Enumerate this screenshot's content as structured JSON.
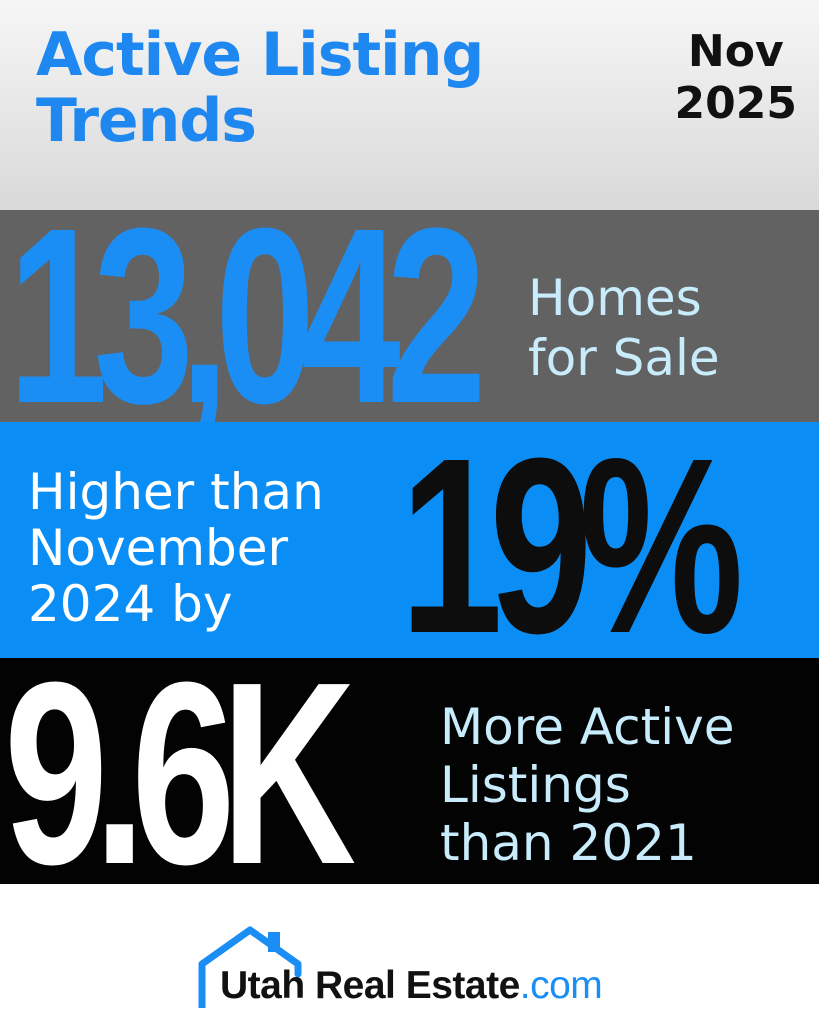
{
  "header": {
    "title_line1": "Active Listing",
    "title_line2": "Trends",
    "month": "Nov",
    "year": "2025"
  },
  "stat1": {
    "value": "13,042",
    "line1": "Homes",
    "line2": "for Sale"
  },
  "stat2": {
    "line1": "Higher than",
    "line2": "November",
    "line3": "2024 by",
    "value": "19%"
  },
  "stat3": {
    "value": "9.6K",
    "line1": "More Active",
    "line2": "Listings",
    "line3": "than 2021"
  },
  "logo": {
    "brand": "Utah Real Estate",
    "suffix": ".com"
  },
  "colors": {
    "accent_blue": "#0a8ef5",
    "title_blue": "#1e88f0",
    "light_cyan": "#c8ecfb",
    "gray_band": "#626262",
    "black_band": "#030303"
  }
}
